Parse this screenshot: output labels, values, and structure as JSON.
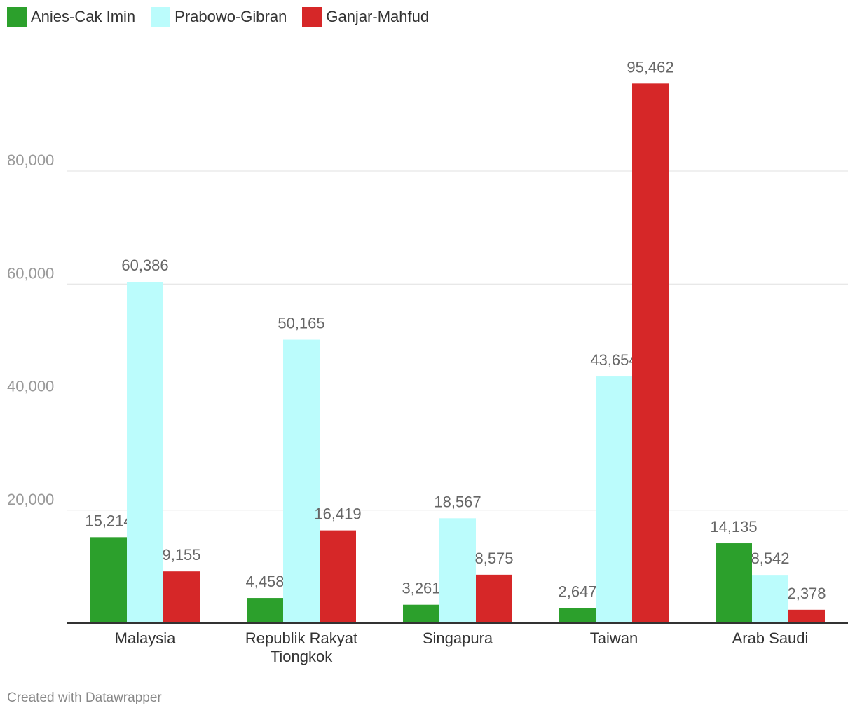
{
  "chart_data": {
    "type": "bar",
    "categories": [
      [
        "Malaysia"
      ],
      [
        "Republik Rakyat",
        "Tiongkok"
      ],
      [
        "Singapura"
      ],
      [
        "Taiwan"
      ],
      [
        "Arab Saudi"
      ]
    ],
    "series": [
      {
        "name": "Anies-Cak Imin",
        "color": "#2ca02c",
        "values": [
          15214,
          4458,
          3261,
          2647,
          14135
        ],
        "labels": [
          "15,214",
          "4,458",
          "3,261",
          "2,647",
          "14,135"
        ]
      },
      {
        "name": "Prabowo-Gibran",
        "color": "#bbfcfc",
        "values": [
          60386,
          50165,
          18567,
          43654,
          8542
        ],
        "labels": [
          "60,386",
          "50,165",
          "18,567",
          "43,654",
          "8,542"
        ]
      },
      {
        "name": "Ganjar-Mahfud",
        "color": "#d62728",
        "values": [
          9155,
          16419,
          8575,
          95462,
          2378
        ],
        "labels": [
          "9,155",
          "16,419",
          "8,575",
          "95,462",
          "2,378"
        ]
      }
    ],
    "yticks": [
      20000,
      40000,
      60000,
      80000
    ],
    "ytick_labels": [
      "20,000",
      "40,000",
      "60,000",
      "80,000"
    ],
    "ylim": [
      0,
      100000
    ],
    "grid": true,
    "legend": "top-left"
  },
  "footer": "Created with Datawrapper"
}
